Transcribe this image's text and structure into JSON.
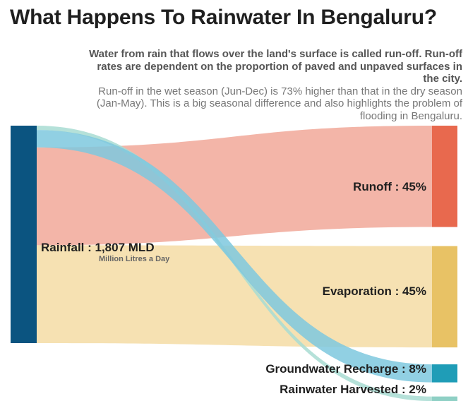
{
  "title": "What Happens To Rainwater In Bengaluru?",
  "description": {
    "bold": "Water from rain that flows over the land's surface is called run-off. Run-off rates are dependent on the proportion of paved and unpaved surfaces in the city.",
    "normal": "Run-off in the wet season (Jun-Dec) is 73% higher than that in the dry season (Jan-May). This is a big seasonal difference and also highlights the problem of flooding in Bengaluru."
  },
  "chart_data": {
    "type": "sankey",
    "source": {
      "name": "Rainfall",
      "label": "Rainfall : 1,807 MLD",
      "sublabel": "Million Litres a Day",
      "value": 1807,
      "unit": "MLD",
      "color": "#0b5480"
    },
    "targets": [
      {
        "name": "Runoff",
        "label": "Runoff : 45%",
        "percent": 45,
        "node_color": "#e8694e",
        "flow_color": "#f2b1a3"
      },
      {
        "name": "Evaporation",
        "label": "Evaporation : 45%",
        "percent": 45,
        "node_color": "#e8c265",
        "flow_color": "#f5dfae"
      },
      {
        "name": "Groundwater Recharge",
        "label": "Groundwater Recharge : 8%",
        "percent": 8,
        "node_color": "#1f9db7",
        "flow_color": "#7ec8de"
      },
      {
        "name": "Rainwater Harvested",
        "label": "Rainwater Harvested : 2%",
        "percent": 2,
        "node_color": "#8fd0c5",
        "flow_color": "#a8dcd2"
      }
    ]
  }
}
